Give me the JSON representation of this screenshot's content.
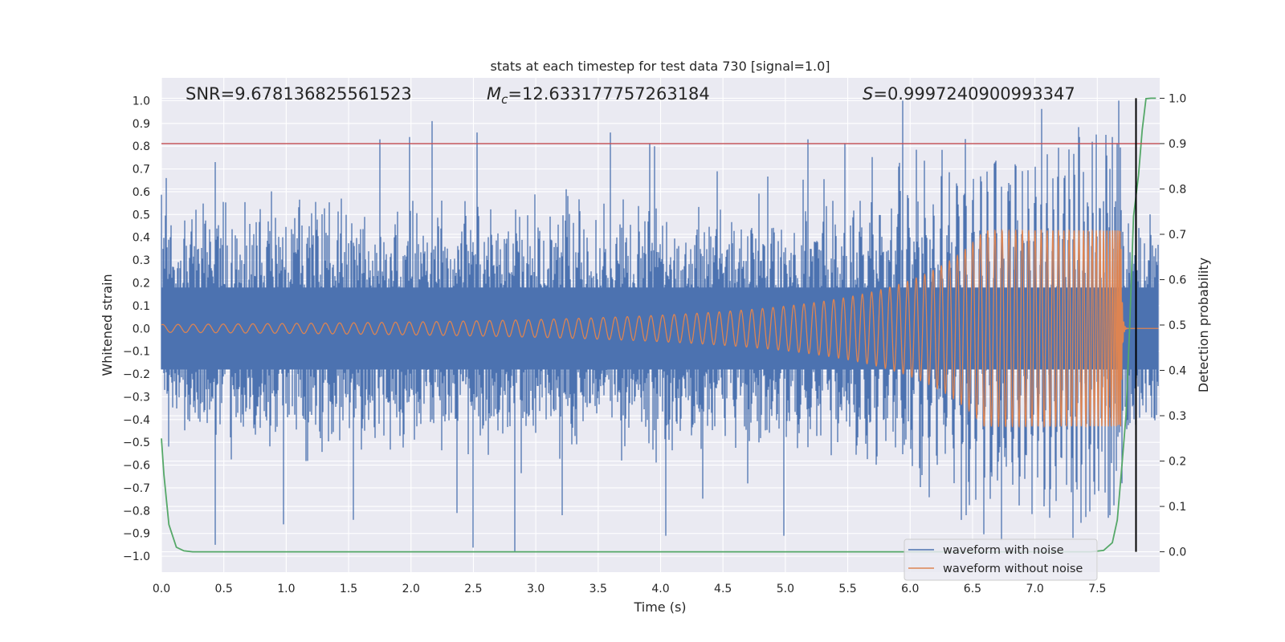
{
  "chart_data": {
    "type": "line",
    "title": "stats at each timestep for test data 730 [signal=1.0]",
    "xlabel": "Time (s)",
    "ylabel": "Whitened strain",
    "y2label": "Detection probability",
    "xlim": [
      0.0,
      8.0
    ],
    "ylim": [
      -1.07,
      1.1
    ],
    "y2lim": [
      -0.045,
      1.045
    ],
    "xticks": [
      0.0,
      0.5,
      1.0,
      1.5,
      2.0,
      2.5,
      3.0,
      3.5,
      4.0,
      4.5,
      5.0,
      5.5,
      6.0,
      6.5,
      7.0,
      7.5
    ],
    "xtick_labels": [
      "0.0",
      "0.5",
      "1.0",
      "1.5",
      "2.0",
      "2.5",
      "3.0",
      "3.5",
      "4.0",
      "4.5",
      "5.0",
      "5.5",
      "6.0",
      "6.5",
      "7.0",
      "7.5"
    ],
    "yticks": [
      1.0,
      0.9,
      0.8,
      0.7,
      0.6,
      0.5,
      0.4,
      0.3,
      0.2,
      0.1,
      0.0,
      -0.1,
      -0.2,
      -0.3,
      -0.4,
      -0.5,
      -0.6,
      -0.7,
      -0.8,
      -0.9,
      -1.0
    ],
    "ytick_labels": [
      "1.0",
      "0.9",
      "0.8",
      "0.7",
      "0.6",
      "0.5",
      "0.4",
      "0.3",
      "0.2",
      "0.1",
      "0.0",
      "−0.1",
      "−0.2",
      "−0.3",
      "−0.4",
      "−0.5",
      "−0.6",
      "−0.7",
      "−0.8",
      "−0.9",
      "−1.0"
    ],
    "y2ticks": [
      1.0,
      0.9,
      0.8,
      0.7,
      0.6,
      0.5,
      0.4,
      0.3,
      0.2,
      0.1,
      0.0
    ],
    "y2tick_labels": [
      "1.0",
      "0.9",
      "0.8",
      "0.7",
      "0.6",
      "0.5",
      "0.4",
      "0.3",
      "0.2",
      "0.1",
      "0.0"
    ],
    "grid": true,
    "legend": {
      "location": "lower-right",
      "entries": [
        "waveform with noise",
        "waveform without noise"
      ]
    },
    "annotations": {
      "snr": "SNR=9.678136825561523",
      "mc_symbol": "M",
      "mc_sub": "c",
      "mc_value": "=12.633177757263184",
      "s_symbol": "S",
      "s_value": "=0.9997240900993347"
    },
    "series": [
      {
        "name": "waveform with noise",
        "color": "#4c72b0",
        "axis": "left",
        "x_range": [
          0.0,
          7.99
        ],
        "envelope_std": 0.2,
        "peaks": [
          {
            "x": 0.0,
            "y": 0.46
          },
          {
            "x": 0.04,
            "y": 0.66
          },
          {
            "x": 0.43,
            "y": 0.73
          },
          {
            "x": 1.75,
            "y": 0.83
          },
          {
            "x": 1.99,
            "y": 0.84
          },
          {
            "x": 2.17,
            "y": 0.91
          },
          {
            "x": 2.53,
            "y": 0.86
          },
          {
            "x": 3.6,
            "y": 0.86
          },
          {
            "x": 3.95,
            "y": 0.8
          },
          {
            "x": 5.18,
            "y": 0.83
          },
          {
            "x": 5.48,
            "y": 0.81
          },
          {
            "x": 5.94,
            "y": 1.0
          },
          {
            "x": 7.57,
            "y": 0.85
          },
          {
            "x": 7.62,
            "y": 0.84
          },
          {
            "x": 7.67,
            "y": 1.0
          },
          {
            "x": 0.43,
            "y": -0.95
          },
          {
            "x": 0.98,
            "y": -0.86
          },
          {
            "x": 1.54,
            "y": -0.84
          },
          {
            "x": 2.37,
            "y": -0.81
          },
          {
            "x": 2.83,
            "y": -0.98
          },
          {
            "x": 3.21,
            "y": -0.82
          },
          {
            "x": 4.04,
            "y": -0.91
          },
          {
            "x": 4.99,
            "y": -0.91
          },
          {
            "x": 6.73,
            "y": -0.93
          },
          {
            "x": 7.6,
            "y": -0.82
          },
          {
            "x": 6.45,
            "y": -0.82
          }
        ]
      },
      {
        "name": "waveform without noise",
        "color": "#dd8452",
        "axis": "left",
        "chirp": {
          "merger_time": 7.69,
          "amplitude_at_merger": 0.43,
          "amp_start": 0.012,
          "freq_start_hz": 7.5,
          "tau": 9.6
        }
      },
      {
        "name": "detection probability",
        "color": "#55a868",
        "axis": "right",
        "x": [
          0.0,
          0.02,
          0.06,
          0.12,
          0.18,
          0.25,
          0.4,
          1.0,
          3.0,
          5.0,
          7.0,
          7.45,
          7.55,
          7.62,
          7.66,
          7.7,
          7.73,
          7.76,
          7.79,
          7.83,
          7.86,
          7.89,
          7.93,
          7.97
        ],
        "y": [
          0.25,
          0.17,
          0.06,
          0.01,
          0.002,
          0.0,
          0.0,
          0.0,
          0.0,
          0.0,
          0.0,
          0.0,
          0.003,
          0.02,
          0.07,
          0.2,
          0.3,
          0.5,
          0.74,
          0.83,
          0.93,
          0.999,
          1.0,
          1.0
        ]
      }
    ],
    "threshold_line": {
      "axis": "right",
      "value": 0.9,
      "color": "#c44e52"
    },
    "merger_marker": {
      "x": 7.81,
      "y_from": 0.0,
      "y_to": 1.0,
      "axis": "right",
      "color": "#000000"
    }
  }
}
